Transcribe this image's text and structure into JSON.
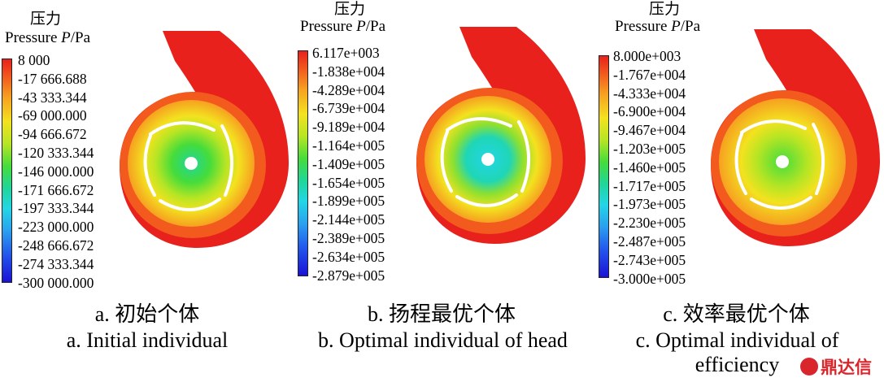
{
  "legend": {
    "title_cn": "压力",
    "title_en_prefix": "Pressure ",
    "title_en_var": "P",
    "title_en_unit": "/Pa"
  },
  "panels": [
    {
      "ticks": [
        "8 000",
        "-17 666.688",
        "-43 333.344",
        "-69 000.000",
        "-94 666.672",
        "-120 333.344",
        "-146 000.000",
        "-171 666.672",
        "-197 333.344",
        "-223 000.000",
        "-248 666.672",
        "-274 333.344",
        "-300 000.000"
      ],
      "caption_cn": "a. 初始个体",
      "caption_en": "a. Initial individual"
    },
    {
      "ticks": [
        "6.117e+003",
        "-1.838e+004",
        "-4.289e+004",
        "-6.739e+004",
        "-9.189e+004",
        "-1.164e+005",
        "-1.409e+005",
        "-1.654e+005",
        "-1.899e+005",
        "-2.144e+005",
        "-2.389e+005",
        "-2.634e+005",
        "-2.879e+005"
      ],
      "caption_cn": "b. 扬程最优个体",
      "caption_en": "b. Optimal individual of head"
    },
    {
      "ticks": [
        "8.000e+003",
        "-1.767e+004",
        "-4.333e+004",
        "-6.900e+004",
        "-9.467e+004",
        "-1.203e+005",
        "-1.460e+005",
        "-1.717e+005",
        "-1.973e+005",
        "-2.230e+005",
        "-2.487e+005",
        "-2.743e+005",
        "-3.000e+005"
      ],
      "caption_cn": "c. 效率最优个体",
      "caption_en": "c. Optimal individual of efficiency"
    }
  ],
  "watermark": "鼎达信",
  "colors": {
    "high": "#e8211c",
    "orange": "#f6a021",
    "yellow": "#f3e21f",
    "green": "#45dc3b",
    "cyan": "#22d6e6",
    "low": "#1a12d6"
  }
}
